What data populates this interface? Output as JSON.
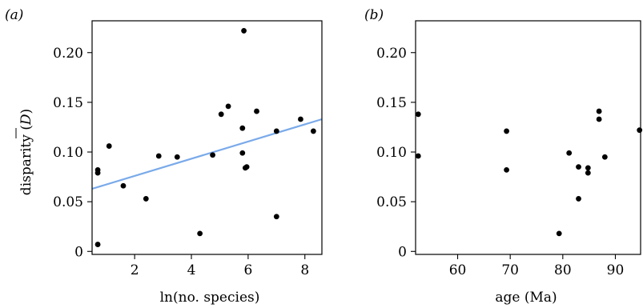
{
  "chart_data": [
    {
      "type": "scatter",
      "panel_label": "(a)",
      "xlabel": "ln(no. species)",
      "ylabel_main": "disparity (",
      "ylabel_symbol": "D",
      "ylabel_close": ")",
      "xlim": [
        0.5,
        8.6
      ],
      "ylim": [
        -0.003,
        0.232
      ],
      "xticks": [
        2,
        4,
        6,
        8
      ],
      "xtick_labels": [
        "2",
        "4",
        "6",
        "8"
      ],
      "yticks": [
        0,
        0.05,
        0.1,
        0.15,
        0.2
      ],
      "ytick_labels": [
        "0",
        "0.05",
        "0.10",
        "0.15",
        "0.20"
      ],
      "points": [
        {
          "x": 0.7,
          "y": 0.007
        },
        {
          "x": 0.7,
          "y": 0.079
        },
        {
          "x": 0.7,
          "y": 0.082
        },
        {
          "x": 1.1,
          "y": 0.106
        },
        {
          "x": 1.6,
          "y": 0.066
        },
        {
          "x": 2.4,
          "y": 0.053
        },
        {
          "x": 2.85,
          "y": 0.096
        },
        {
          "x": 3.5,
          "y": 0.095
        },
        {
          "x": 4.3,
          "y": 0.018
        },
        {
          "x": 4.75,
          "y": 0.097
        },
        {
          "x": 5.05,
          "y": 0.138
        },
        {
          "x": 5.3,
          "y": 0.146
        },
        {
          "x": 5.8,
          "y": 0.124
        },
        {
          "x": 5.8,
          "y": 0.099
        },
        {
          "x": 5.85,
          "y": 0.222
        },
        {
          "x": 5.9,
          "y": 0.084
        },
        {
          "x": 5.95,
          "y": 0.085
        },
        {
          "x": 6.3,
          "y": 0.141
        },
        {
          "x": 7.0,
          "y": 0.121
        },
        {
          "x": 7.0,
          "y": 0.035
        },
        {
          "x": 7.85,
          "y": 0.133
        },
        {
          "x": 8.3,
          "y": 0.121
        }
      ],
      "fit_line": {
        "x": [
          0.5,
          8.6
        ],
        "y": [
          0.063,
          0.133
        ],
        "color": "#7aaaea"
      },
      "point_color": "#000000",
      "frame": "full"
    },
    {
      "type": "scatter",
      "panel_label": "(b)",
      "xlabel": "age (Ma)",
      "xlim": [
        52,
        94.8
      ],
      "ylim": [
        -0.003,
        0.232
      ],
      "xticks": [
        60,
        70,
        80,
        90
      ],
      "xtick_labels": [
        "60",
        "70",
        "80",
        "90"
      ],
      "yticks": [
        0,
        0.05,
        0.1,
        0.15,
        0.2
      ],
      "ytick_labels": [
        "0",
        "0.05",
        "0.10",
        "0.15",
        "0.20"
      ],
      "points": [
        {
          "x": 52.5,
          "y": 0.138
        },
        {
          "x": 52.5,
          "y": 0.096
        },
        {
          "x": 69.3,
          "y": 0.121
        },
        {
          "x": 69.3,
          "y": 0.082
        },
        {
          "x": 79.3,
          "y": 0.018
        },
        {
          "x": 81.2,
          "y": 0.099
        },
        {
          "x": 83.0,
          "y": 0.085
        },
        {
          "x": 83.0,
          "y": 0.053
        },
        {
          "x": 84.8,
          "y": 0.084
        },
        {
          "x": 84.8,
          "y": 0.079
        },
        {
          "x": 86.9,
          "y": 0.141
        },
        {
          "x": 86.9,
          "y": 0.133
        },
        {
          "x": 88.0,
          "y": 0.095
        },
        {
          "x": 94.6,
          "y": 0.122
        }
      ],
      "point_color": "#000000",
      "frame": "full"
    }
  ]
}
